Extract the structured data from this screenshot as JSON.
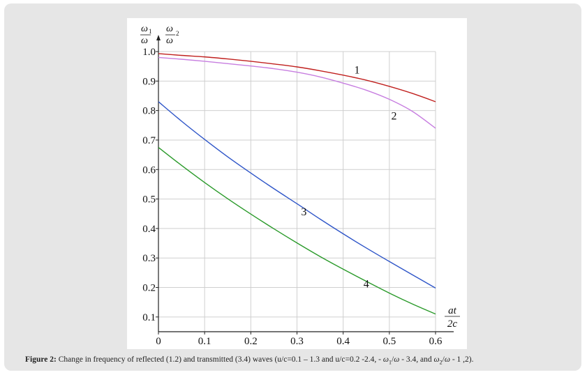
{
  "chart_data": {
    "type": "line",
    "title": "",
    "xlabel_num": "at",
    "xlabel_den": "2c",
    "ylabel_left_num": "ω",
    "ylabel_left_num_sub": "1",
    "ylabel_left_den": "ω",
    "ylabel_right_num": "ω",
    "ylabel_right_den": "ω",
    "ylabel_right_sup": "2",
    "xlim": [
      0,
      0.6
    ],
    "ylim": [
      0.05,
      1.0
    ],
    "x_ticks": [
      0,
      0.1,
      0.2,
      0.3,
      0.4,
      0.5,
      0.6
    ],
    "x_tick_labels": [
      "0",
      "0.1",
      "0.2",
      "0.3",
      "0.4",
      "0.5",
      "0.6"
    ],
    "y_ticks": [
      1.0,
      0.9,
      0.8,
      0.7,
      0.6,
      0.5,
      0.4,
      0.3,
      0.2,
      0.1
    ],
    "y_tick_labels": [
      "1.0",
      "0.9",
      "0.8",
      "0.7",
      "0.6",
      "0.5",
      "0.4",
      "0.3",
      "0.2",
      "0.1"
    ],
    "grid": true,
    "series": [
      {
        "label": "1",
        "color": "#c0201e",
        "x": [
          0,
          0.05,
          0.1,
          0.15,
          0.2,
          0.25,
          0.3,
          0.35,
          0.4,
          0.45,
          0.5,
          0.55,
          0.6
        ],
        "y": [
          0.993,
          0.987,
          0.982,
          0.975,
          0.967,
          0.958,
          0.948,
          0.935,
          0.92,
          0.903,
          0.882,
          0.858,
          0.83
        ],
        "label_at": [
          0.43,
          0.925
        ]
      },
      {
        "label": "2",
        "color": "#c77ee0",
        "x": [
          0,
          0.05,
          0.1,
          0.15,
          0.2,
          0.25,
          0.3,
          0.35,
          0.4,
          0.45,
          0.5,
          0.55,
          0.6
        ],
        "y": [
          0.98,
          0.974,
          0.967,
          0.959,
          0.951,
          0.942,
          0.93,
          0.914,
          0.893,
          0.869,
          0.838,
          0.797,
          0.74
        ],
        "label_at": [
          0.51,
          0.77
        ]
      },
      {
        "label": "3",
        "color": "#2e55c8",
        "x": [
          0,
          0.05,
          0.1,
          0.15,
          0.2,
          0.25,
          0.3,
          0.35,
          0.4,
          0.45,
          0.5,
          0.55,
          0.6
        ],
        "y": [
          0.83,
          0.764,
          0.702,
          0.643,
          0.588,
          0.535,
          0.484,
          0.432,
          0.382,
          0.334,
          0.288,
          0.243,
          0.198
        ],
        "label_at": [
          0.315,
          0.445
        ]
      },
      {
        "label": "4",
        "color": "#2a9a2a",
        "x": [
          0,
          0.05,
          0.1,
          0.15,
          0.2,
          0.25,
          0.3,
          0.35,
          0.4,
          0.45,
          0.5,
          0.55,
          0.6
        ],
        "y": [
          0.675,
          0.614,
          0.556,
          0.501,
          0.449,
          0.399,
          0.351,
          0.305,
          0.262,
          0.221,
          0.181,
          0.144,
          0.11
        ],
        "label_at": [
          0.45,
          0.2
        ]
      }
    ]
  },
  "caption": {
    "label": "Figure 2:",
    "text": " Change in frequency of reflected (1.2) and transmitted (3.4) waves (u/c=0.1 – 1.3 and u/c=0.2 -2.4, - ",
    "ratio1_num": "ω",
    "ratio1_sub": "1",
    "ratio1_den": "ω",
    "text2": " - 3.4, and ",
    "ratio2_num": "ω",
    "ratio2_sub": "2",
    "ratio2_den": "ω",
    "text3": " - 1 ,2)."
  }
}
